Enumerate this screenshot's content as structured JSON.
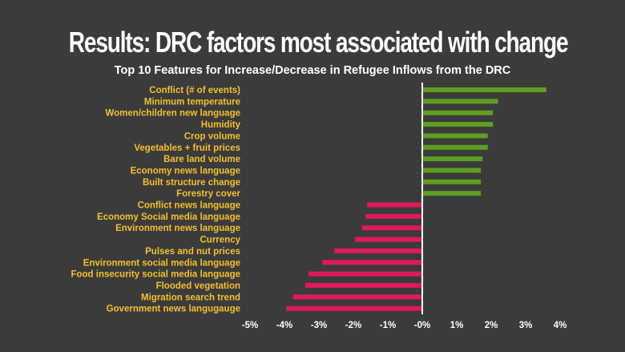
{
  "slide": {
    "title": "Results: DRC factors most associated with change"
  },
  "chart_data": {
    "type": "bar",
    "orientation": "horizontal",
    "title": "Top 10 Features for Increase/Decrease in Refugee Inflows from the DRC",
    "xlabel": "",
    "ylabel": "",
    "xlim": [
      -5,
      4
    ],
    "x_tick_labels": [
      "-5%",
      "-4%",
      "-3%",
      "-2%",
      "-1%",
      "-0%",
      "1%",
      "2%",
      "3%",
      "4%"
    ],
    "x_tick_values": [
      -5,
      -4,
      -3,
      -2,
      -1,
      0,
      1,
      2,
      3,
      4
    ],
    "grid": false,
    "legend": "none",
    "colors": {
      "positive": "#5e9e22",
      "negative": "#e0195f",
      "category_label": "#f2c12e",
      "axis_line": "#ffffff",
      "background": "#3b3b3b"
    },
    "categories": [
      "Conflict (# of events)",
      "Minimum temperature",
      "Women/children new language",
      "Humidity",
      "Crop volume",
      "Vegetables + fruit prices",
      "Bare land volume",
      "Economy news language",
      "Built structure change",
      "Forestry cover",
      "Conflict news language",
      "Economy Social media language",
      "Environment news language",
      "Currency",
      "Pulses and nut prices",
      "Environment social media language",
      "Food insecurity social media language",
      "Flooded vegetation",
      "Migration search trend",
      "Government news langugauge"
    ],
    "values": [
      3.6,
      2.2,
      2.05,
      2.05,
      1.9,
      1.9,
      1.75,
      1.7,
      1.7,
      1.7,
      -1.6,
      -1.65,
      -1.75,
      -1.95,
      -2.55,
      -2.9,
      -3.3,
      -3.4,
      -3.75,
      -3.95
    ]
  }
}
